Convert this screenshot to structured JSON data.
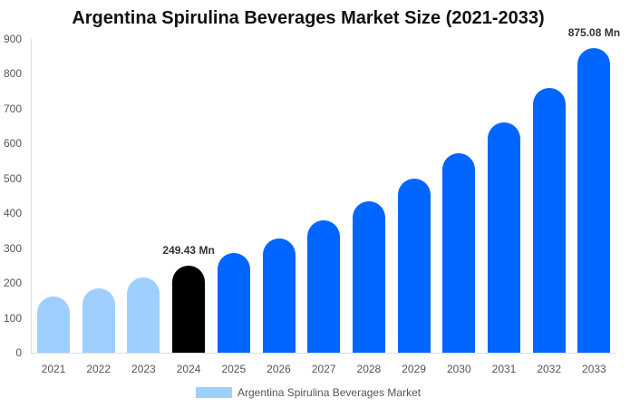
{
  "chart_data": {
    "type": "bar",
    "title": "Argentina Spirulina Beverages Market Size (2021-2033)",
    "xlabel": "",
    "ylabel": "",
    "ylim": [
      0,
      900
    ],
    "yticks": [
      0,
      100,
      200,
      300,
      400,
      500,
      600,
      700,
      800,
      900
    ],
    "grid": false,
    "legend_position": "bottom",
    "categories": [
      "2021",
      "2022",
      "2023",
      "2024",
      "2025",
      "2026",
      "2027",
      "2028",
      "2029",
      "2030",
      "2031",
      "2032",
      "2033"
    ],
    "series": [
      {
        "name": "Argentina Spirulina Beverages Market",
        "values": [
          161,
          185,
          216,
          249.43,
          286,
          328,
          380,
          434,
          499,
          572,
          661,
          760,
          875.08
        ]
      }
    ],
    "bar_colors": [
      "#9fcfff",
      "#9fcfff",
      "#9fcfff",
      "#000000",
      "#0066ff",
      "#0066ff",
      "#0066ff",
      "#0066ff",
      "#0066ff",
      "#0066ff",
      "#0066ff",
      "#0066ff",
      "#0066ff"
    ],
    "annotations": [
      {
        "category": "2024",
        "text": "249.43 Mn"
      },
      {
        "category": "2033",
        "text": "875.08 Mn"
      }
    ]
  },
  "legend": {
    "label": "Argentina Spirulina Beverages Market",
    "color": "#9fcfff"
  }
}
